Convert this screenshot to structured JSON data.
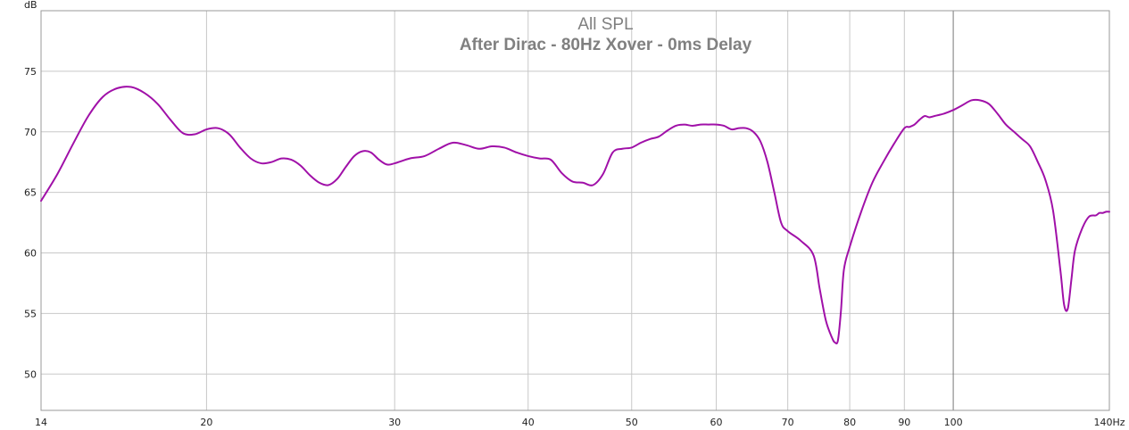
{
  "chart_data": {
    "type": "line",
    "title": "All SPL",
    "subtitle": "After Dirac - 80Hz Xover - 0ms Delay",
    "ylabel": "dB",
    "xunit": "Hz",
    "xscale": "log",
    "xlim": [
      14,
      140
    ],
    "ylim": [
      47,
      80
    ],
    "grid": true,
    "x_ticks": [
      14,
      20,
      30,
      40,
      50,
      60,
      70,
      80,
      90,
      100,
      140
    ],
    "x_tick_labels": [
      "14",
      "20",
      "30",
      "40",
      "50",
      "60",
      "70",
      "80",
      "90",
      "100",
      "140Hz"
    ],
    "x_grid": [
      20,
      30,
      40,
      50,
      60,
      70,
      80,
      90,
      100
    ],
    "x_grid_emphasis": [
      100
    ],
    "y_ticks": [
      50,
      55,
      60,
      65,
      70,
      75
    ],
    "y_tick_labels": [
      "50",
      "55",
      "60",
      "65",
      "70",
      "75"
    ],
    "colors": {
      "series": "#a010a8",
      "grid": "#c8c8c8",
      "grid_emphasis": "#787878",
      "axis": "#9a9a9a",
      "title": "#808080"
    },
    "series": [
      {
        "x": [
          14,
          14.5,
          15,
          15.5,
          16,
          16.5,
          17,
          17.5,
          18,
          18.5,
          19,
          19.5,
          20,
          20.5,
          21,
          21.5,
          22,
          22.5,
          23,
          23.5,
          24,
          24.5,
          25,
          25.5,
          26,
          26.5,
          27,
          27.5,
          28,
          28.5,
          29,
          29.5,
          30,
          31,
          32,
          33,
          34,
          35,
          36,
          37,
          38,
          39,
          40,
          41,
          42,
          43,
          44,
          45,
          46,
          47,
          48,
          49,
          50,
          51,
          52,
          53,
          54,
          55,
          56,
          57,
          58,
          59,
          60,
          61,
          62,
          63,
          64,
          65,
          66,
          67,
          68,
          69,
          70,
          72,
          74,
          75,
          76,
          77,
          77.5,
          78,
          78.5,
          79,
          80,
          82,
          84,
          86,
          88,
          90,
          91,
          92,
          93,
          94,
          95,
          96,
          98,
          100,
          102,
          104,
          106,
          108,
          110,
          112,
          114,
          116,
          118,
          120,
          122,
          124,
          126,
          127,
          128,
          129,
          130,
          132,
          134,
          136,
          137,
          138,
          139,
          140
        ],
        "y": [
          64.3,
          66.5,
          69.0,
          71.3,
          72.9,
          73.6,
          73.7,
          73.2,
          72.3,
          71.0,
          69.9,
          69.8,
          70.2,
          70.3,
          69.8,
          68.7,
          67.8,
          67.4,
          67.5,
          67.8,
          67.7,
          67.2,
          66.4,
          65.8,
          65.6,
          66.1,
          67.1,
          68.0,
          68.4,
          68.3,
          67.7,
          67.3,
          67.4,
          67.8,
          68.0,
          68.6,
          69.1,
          68.9,
          68.6,
          68.8,
          68.7,
          68.3,
          68.0,
          67.8,
          67.7,
          66.6,
          65.9,
          65.8,
          65.6,
          66.5,
          68.3,
          68.6,
          68.7,
          69.1,
          69.4,
          69.6,
          70.1,
          70.5,
          70.6,
          70.5,
          70.6,
          70.6,
          70.6,
          70.5,
          70.2,
          70.3,
          70.3,
          70.0,
          69.2,
          67.5,
          65.0,
          62.5,
          61.8,
          61.0,
          59.8,
          57.0,
          54.4,
          53.0,
          52.6,
          52.8,
          55.2,
          58.6,
          60.5,
          63.4,
          65.8,
          67.5,
          69.0,
          70.3,
          70.4,
          70.6,
          71.0,
          71.3,
          71.2,
          71.3,
          71.5,
          71.8,
          72.2,
          72.6,
          72.6,
          72.3,
          71.5,
          70.6,
          70.0,
          69.4,
          68.8,
          67.5,
          66.0,
          63.5,
          58.5,
          55.7,
          55.4,
          57.8,
          60.2,
          62.0,
          63.0,
          63.1,
          63.3,
          63.3,
          63.4,
          63.4
        ],
        "stroke": "#a010a8"
      }
    ]
  }
}
